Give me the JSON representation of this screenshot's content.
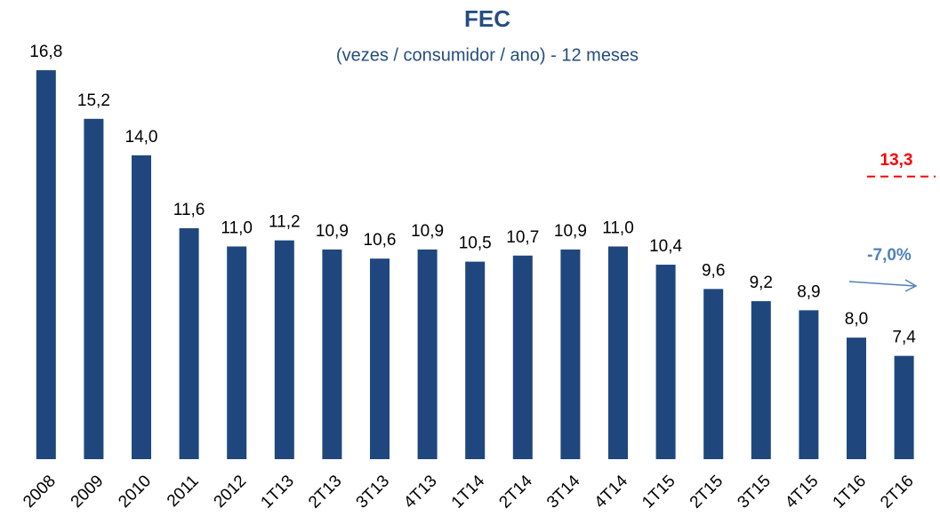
{
  "chart_data": {
    "type": "bar",
    "title": "FEC",
    "subtitle": "(vezes / consumidor / ano) - 12 meses",
    "categories": [
      "2008",
      "2009",
      "2010",
      "2011",
      "2012",
      "1T13",
      "2T13",
      "3T13",
      "4T13",
      "1T14",
      "2T14",
      "3T14",
      "4T14",
      "1T15",
      "2T15",
      "3T15",
      "4T15",
      "1T16",
      "2T16"
    ],
    "values": [
      16.8,
      15.2,
      14.0,
      11.6,
      11.0,
      11.2,
      10.9,
      10.6,
      10.9,
      10.5,
      10.7,
      10.9,
      11.0,
      10.4,
      9.6,
      9.2,
      8.9,
      8.0,
      7.4
    ],
    "value_labels": [
      "16,8",
      "15,2",
      "14,0",
      "11,6",
      "11,0",
      "11,2",
      "10,9",
      "10,6",
      "10,9",
      "10,5",
      "10,7",
      "10,9",
      "11,0",
      "10,4",
      "9,6",
      "9,2",
      "8,9",
      "8,0",
      "7,4"
    ],
    "color": "#1f477d",
    "ylim": [
      4,
      18
    ],
    "reference_line": {
      "value": 13.3,
      "label": "13,3",
      "color": "#ff0000"
    },
    "annotation": {
      "text": "-7,0%",
      "color": "#4f81bd"
    }
  }
}
